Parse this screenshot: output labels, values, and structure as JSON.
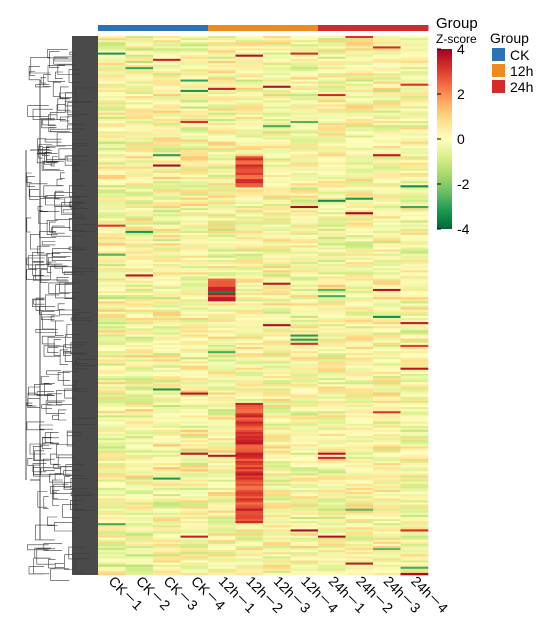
{
  "colors": {
    "CK": "#2b73b6",
    "12h": "#f08a1c",
    "24h": "#d42a2a",
    "dendrogram": "#3a3a3a",
    "scale": [
      "#006837",
      "#1a9850",
      "#66bd63",
      "#a6d96a",
      "#d9ef8b",
      "#ffffbf",
      "#fee08b",
      "#fdae61",
      "#f46d43",
      "#d73027",
      "#a50026"
    ]
  },
  "chart_data": {
    "type": "heatmap",
    "title": "",
    "xlabel": "",
    "ylabel": "",
    "columns": [
      "CK－1",
      "CK－2",
      "CK－3",
      "CK－4",
      "12h－1",
      "12h－2",
      "12h－3",
      "12h－4",
      "24h－1",
      "24h－2",
      "24h－3",
      "24h－4"
    ],
    "column_groups": [
      "CK",
      "CK",
      "CK",
      "CK",
      "12h",
      "12h",
      "12h",
      "12h",
      "24h",
      "24h",
      "24h",
      "24h"
    ],
    "row_dendrogram": true,
    "annotation_title": "Group",
    "colorbar": {
      "title": "Z-score",
      "range": [
        -4,
        4
      ],
      "ticks": [
        "4",
        "2",
        "0",
        "-2",
        "-4"
      ]
    },
    "legend": {
      "title": "Group",
      "placement": "right",
      "entries": [
        "CK",
        "12h",
        "24h"
      ]
    },
    "highlighted_blocks": [
      {
        "column": "12h－2",
        "description": "high",
        "from_fraction": 0.22,
        "to_fraction": 0.28
      },
      {
        "column": "12h－2",
        "description": "high",
        "from_fraction": 0.68,
        "to_fraction": 0.9
      },
      {
        "column": "12h－1",
        "description": "high",
        "from_fraction": 0.45,
        "to_fraction": 0.49
      }
    ]
  },
  "labels": {
    "group_annotation": "Group",
    "zscore_title": "Z-score",
    "legend_title": "Group"
  }
}
